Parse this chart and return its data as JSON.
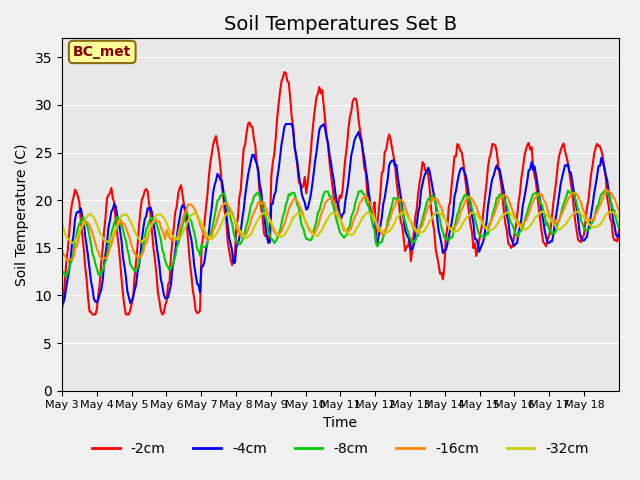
{
  "title": "Soil Temperatures Set B",
  "xlabel": "Time",
  "ylabel": "Soil Temperature (C)",
  "annotation": "BC_met",
  "ylim": [
    0,
    37
  ],
  "yticks": [
    0,
    5,
    10,
    15,
    20,
    25,
    30,
    35
  ],
  "x_labels": [
    "May 3",
    "May 4",
    "May 5",
    "May 6",
    "May 7",
    "May 8",
    "May 9",
    "May 10",
    "May 11",
    "May 12",
    "May 13",
    "May 14",
    "May 15",
    "May 16",
    "May 17",
    "May 18"
  ],
  "series": {
    "-2cm": {
      "color": "#ff0000",
      "lw": 1.5
    },
    "-4cm": {
      "color": "#0000ff",
      "lw": 1.5
    },
    "-8cm": {
      "color": "#00cc00",
      "lw": 1.5
    },
    "-16cm": {
      "color": "#ff8800",
      "lw": 1.5
    },
    "-32cm": {
      "color": "#cccc00",
      "lw": 1.5
    }
  },
  "bg_color": "#e8e8e8",
  "title_fontsize": 14
}
